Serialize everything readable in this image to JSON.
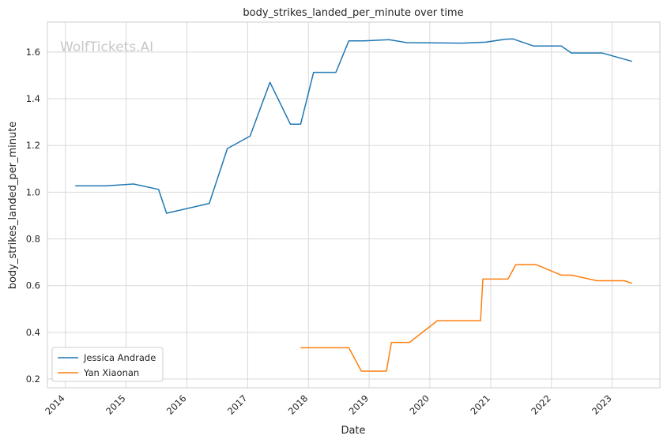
{
  "chart_data": {
    "type": "line",
    "title": "body_strikes_landed_per_minute over time",
    "xlabel": "Date",
    "ylabel": "body_strikes_landed_per_minute",
    "watermark": "WolfTickets.AI",
    "xlim": [
      "2013-09-15",
      "2023-10-15"
    ],
    "ylim": [
      0.163,
      1.728
    ],
    "x_ticks": [
      "2014",
      "2015",
      "2016",
      "2017",
      "2018",
      "2019",
      "2020",
      "2021",
      "2022",
      "2023"
    ],
    "y_ticks": [
      "0.2",
      "0.4",
      "0.6",
      "0.8",
      "1.0",
      "1.2",
      "1.4",
      "1.6"
    ],
    "grid": true,
    "legend_position": "bottom-left",
    "series": [
      {
        "name": "Jessica Andrade",
        "color": "#1f77b4",
        "points": [
          [
            "2014-03-01",
            1.027
          ],
          [
            "2014-09-01",
            1.027
          ],
          [
            "2015-02-15",
            1.035
          ],
          [
            "2015-07-15",
            1.012
          ],
          [
            "2015-09-01",
            0.91
          ],
          [
            "2016-05-15",
            0.952
          ],
          [
            "2016-09-01",
            1.187
          ],
          [
            "2017-01-15",
            1.24
          ],
          [
            "2017-05-15",
            1.47
          ],
          [
            "2017-09-15",
            1.291
          ],
          [
            "2017-11-15",
            1.291
          ],
          [
            "2018-02-01",
            1.513
          ],
          [
            "2018-06-15",
            1.513
          ],
          [
            "2018-09-01",
            1.648
          ],
          [
            "2018-12-01",
            1.648
          ],
          [
            "2019-05-01",
            1.653
          ],
          [
            "2019-08-15",
            1.64
          ],
          [
            "2020-07-15",
            1.638
          ],
          [
            "2020-12-01",
            1.642
          ],
          [
            "2021-04-01",
            1.655
          ],
          [
            "2021-05-15",
            1.656
          ],
          [
            "2021-09-15",
            1.626
          ],
          [
            "2022-03-01",
            1.626
          ],
          [
            "2022-05-01",
            1.596
          ],
          [
            "2022-11-01",
            1.596
          ],
          [
            "2023-05-01",
            1.56
          ]
        ]
      },
      {
        "name": "Yan Xiaonan",
        "color": "#ff7f0e",
        "points": [
          [
            "2017-11-15",
            0.334
          ],
          [
            "2018-09-01",
            0.334
          ],
          [
            "2018-11-15",
            0.234
          ],
          [
            "2019-04-15",
            0.234
          ],
          [
            "2019-05-15",
            0.357
          ],
          [
            "2019-09-01",
            0.357
          ],
          [
            "2020-02-15",
            0.45
          ],
          [
            "2020-11-01",
            0.45
          ],
          [
            "2020-11-15",
            0.628
          ],
          [
            "2021-04-15",
            0.628
          ],
          [
            "2021-06-01",
            0.69
          ],
          [
            "2021-10-01",
            0.69
          ],
          [
            "2022-03-01",
            0.645
          ],
          [
            "2022-05-01",
            0.645
          ],
          [
            "2022-10-01",
            0.621
          ],
          [
            "2023-03-15",
            0.621
          ],
          [
            "2023-05-01",
            0.61
          ]
        ]
      }
    ]
  }
}
